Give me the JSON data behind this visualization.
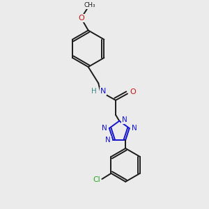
{
  "bg_color": "#ebebeb",
  "bond_color": "#1a1a1a",
  "N_color": "#1414cc",
  "O_color": "#cc1414",
  "Cl_color": "#22aa22",
  "H_color": "#3d8888",
  "line_width": 1.4,
  "figsize": [
    3.0,
    3.0
  ],
  "dpi": 100,
  "xlim": [
    0,
    10
  ],
  "ylim": [
    0,
    10
  ]
}
